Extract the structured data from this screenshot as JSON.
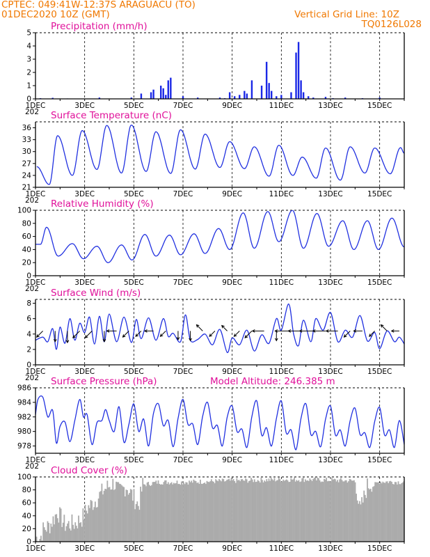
{
  "header": {
    "line1": "CPTEC:   049:41W-12:37S  ARAGUACU (TO)",
    "line2": "01DEC2020 10Z (GMT)",
    "right1": "Vertical Grid Line: 10Z",
    "right2": "TQ0126L028",
    "color": "#f07800"
  },
  "colors": {
    "line": "#2030e0",
    "bar": "#1a28e6",
    "cloud": "#ababab",
    "title": "#e0109a",
    "arrow": "#000000"
  },
  "x_ticks": [
    "1DEC",
    "3DEC",
    "5DEC",
    "7DEC",
    "9DEC",
    "11DEC",
    "13DEC",
    "15DEC"
  ],
  "x_cut_label": "202",
  "chart_data": [
    {
      "type": "bar",
      "title": "Precipitation (mm/h)",
      "ylim": [
        0,
        5
      ],
      "yticks": [
        "0",
        "1",
        "2",
        "3",
        "4",
        "5"
      ],
      "x_unit": "day of December 2020",
      "x": [
        1.2,
        1.7,
        2.3,
        3.6,
        4.9,
        5.3,
        5.7,
        5.8,
        6.1,
        6.2,
        6.3,
        6.4,
        6.5,
        7.0,
        7.6,
        8.5,
        8.7,
        8.9,
        9.1,
        9.3,
        9.5,
        9.6,
        9.8,
        10.2,
        10.4,
        10.5,
        10.6,
        10.8,
        11.0,
        11.4,
        11.6,
        11.7,
        11.8,
        11.9,
        12.1,
        12.3,
        12.8,
        13.1,
        13.6,
        14.3,
        15.0
      ],
      "values": [
        0.05,
        0.08,
        0.03,
        0.1,
        0.1,
        0.4,
        0.5,
        0.7,
        1.0,
        0.8,
        0.3,
        1.4,
        1.6,
        0.2,
        0.1,
        0.1,
        0.05,
        0.5,
        0.2,
        0.3,
        0.6,
        0.4,
        1.4,
        1.0,
        2.8,
        1.2,
        0.6,
        0.2,
        0.3,
        0.5,
        3.5,
        4.3,
        1.4,
        0.5,
        0.2,
        0.1,
        0.15,
        0.05,
        0.1,
        0.05,
        0.1
      ]
    },
    {
      "type": "line",
      "title": "Surface Temperature (nC)",
      "ylim": [
        21,
        37.5
      ],
      "yticks": [
        "21",
        "24",
        "27",
        "30",
        "33",
        "36"
      ],
      "peaks": [
        {
          "day": 1.05,
          "min": 26.2,
          "max": 26.2
        },
        {
          "day": 1.9,
          "min": 21.7,
          "max": 34.0
        },
        {
          "day": 2.9,
          "min": 24.0,
          "max": 35.3
        },
        {
          "day": 3.9,
          "min": 25.5,
          "max": 36.6
        },
        {
          "day": 4.9,
          "min": 24.6,
          "max": 36.7
        },
        {
          "day": 5.9,
          "min": 25.0,
          "max": 35.0
        },
        {
          "day": 6.9,
          "min": 24.5,
          "max": 35.5
        },
        {
          "day": 7.9,
          "min": 25.6,
          "max": 34.4
        },
        {
          "day": 8.9,
          "min": 26.0,
          "max": 32.5
        },
        {
          "day": 9.9,
          "min": 25.7,
          "max": 31.2
        },
        {
          "day": 10.9,
          "min": 23.8,
          "max": 31.6
        },
        {
          "day": 11.85,
          "min": 24.0,
          "max": 28.6
        },
        {
          "day": 12.8,
          "min": 23.3,
          "max": 30.9
        },
        {
          "day": 13.8,
          "min": 22.8,
          "max": 31.2
        },
        {
          "day": 14.8,
          "min": 24.6,
          "max": 30.9
        },
        {
          "day": 15.85,
          "min": 24.4,
          "max": 31.0
        }
      ],
      "end": {
        "day": 16.0,
        "value": 29.6
      }
    },
    {
      "type": "line",
      "title": "Relative Humidity (%)",
      "ylim": [
        0,
        100
      ],
      "yticks": [
        "0",
        "20",
        "40",
        "60",
        "80",
        "100"
      ],
      "peaks": [
        {
          "day": 1.0,
          "min": 48,
          "max": 48
        },
        {
          "day": 1.45,
          "min": 48,
          "max": 74
        },
        {
          "day": 2.5,
          "min": 30,
          "max": 49
        },
        {
          "day": 3.5,
          "min": 26,
          "max": 45
        },
        {
          "day": 4.5,
          "min": 20,
          "max": 47
        },
        {
          "day": 5.45,
          "min": 24,
          "max": 63
        },
        {
          "day": 6.45,
          "min": 30,
          "max": 62
        },
        {
          "day": 7.45,
          "min": 32,
          "max": 64
        },
        {
          "day": 8.45,
          "min": 34,
          "max": 72
        },
        {
          "day": 9.45,
          "min": 40,
          "max": 96
        },
        {
          "day": 10.45,
          "min": 42,
          "max": 98
        },
        {
          "day": 11.45,
          "min": 52,
          "max": 100
        },
        {
          "day": 12.45,
          "min": 42,
          "max": 95
        },
        {
          "day": 13.5,
          "min": 45,
          "max": 84
        },
        {
          "day": 14.5,
          "min": 40,
          "max": 84
        },
        {
          "day": 15.5,
          "min": 40,
          "max": 88
        }
      ],
      "end": {
        "day": 16.0,
        "value": 44
      }
    },
    {
      "type": "line",
      "title": "Surface Wind (m/s)",
      "ylim": [
        0,
        8.5
      ],
      "yticks": [
        "0",
        "2",
        "4",
        "6",
        "8"
      ],
      "x": [
        1.0,
        1.3,
        1.5,
        1.7,
        1.85,
        2.0,
        2.2,
        2.4,
        2.6,
        2.8,
        3.0,
        3.2,
        3.4,
        3.6,
        3.8,
        4.0,
        4.3,
        4.6,
        4.9,
        5.1,
        5.3,
        5.6,
        5.9,
        6.2,
        6.4,
        6.6,
        6.9,
        7.1,
        7.3,
        7.6,
        7.9,
        8.2,
        8.5,
        8.8,
        9.0,
        9.3,
        9.6,
        9.9,
        10.2,
        10.5,
        10.8,
        11.0,
        11.3,
        11.5,
        11.7,
        11.9,
        12.2,
        12.4,
        12.7,
        13.0,
        13.3,
        13.6,
        13.9,
        14.2,
        14.5,
        14.8,
        15.0,
        15.3,
        15.6,
        15.8,
        16.0
      ],
      "values": [
        3.2,
        3.6,
        3.0,
        4.7,
        2.0,
        4.9,
        2.8,
        6.0,
        3.2,
        5.4,
        4.2,
        6.2,
        2.7,
        6.3,
        3.0,
        6.6,
        3.0,
        6.2,
        2.9,
        5.9,
        3.4,
        6.1,
        3.2,
        6.0,
        3.7,
        4.1,
        3.0,
        6.5,
        3.2,
        3.3,
        4.0,
        2.6,
        4.6,
        1.6,
        3.5,
        2.6,
        4.5,
        1.8,
        3.9,
        2.8,
        6.0,
        4.5,
        7.9,
        4.0,
        2.5,
        5.8,
        3.0,
        6.0,
        4.5,
        6.8,
        3.0,
        4.5,
        3.6,
        6.4,
        3.1,
        4.2,
        2.1,
        4.4,
        3.0,
        3.6,
        2.7
      ],
      "arrows": [
        {
          "day": 1.3,
          "dir": "SW",
          "len": 0.9
        },
        {
          "day": 1.8,
          "dir": "S",
          "len": 1.1
        },
        {
          "day": 2.3,
          "dir": "S",
          "len": 1.2
        },
        {
          "day": 2.8,
          "dir": "SW",
          "len": 1.0
        },
        {
          "day": 3.3,
          "dir": "SW",
          "len": 1.0
        },
        {
          "day": 3.8,
          "dir": "S",
          "len": 1.1
        },
        {
          "day": 4.3,
          "dir": "W",
          "len": 1.0
        },
        {
          "day": 4.8,
          "dir": "SW",
          "len": 0.9
        },
        {
          "day": 5.3,
          "dir": "SW",
          "len": 0.8
        },
        {
          "day": 5.8,
          "dir": "W",
          "len": 0.9
        },
        {
          "day": 6.3,
          "dir": "SW",
          "len": 0.8
        },
        {
          "day": 6.8,
          "dir": "S",
          "len": 0.9
        },
        {
          "day": 7.3,
          "dir": "S",
          "len": 1.0
        },
        {
          "day": 7.8,
          "dir": "NW",
          "len": 0.9
        },
        {
          "day": 8.3,
          "dir": "SW",
          "len": 0.8
        },
        {
          "day": 8.8,
          "dir": "NW",
          "len": 0.8
        },
        {
          "day": 9.3,
          "dir": "SW",
          "len": 0.8
        },
        {
          "day": 9.8,
          "dir": "SW",
          "len": 1.0
        },
        {
          "day": 10.3,
          "dir": "W",
          "len": 1.2
        },
        {
          "day": 10.8,
          "dir": "S",
          "len": 1.0
        },
        {
          "day": 11.3,
          "dir": "W",
          "len": 1.4
        },
        {
          "day": 11.8,
          "dir": "W",
          "len": 1.3
        },
        {
          "day": 12.3,
          "dir": "W",
          "len": 1.4
        },
        {
          "day": 12.8,
          "dir": "W",
          "len": 1.3
        },
        {
          "day": 13.3,
          "dir": "W",
          "len": 1.2
        },
        {
          "day": 13.8,
          "dir": "SW",
          "len": 0.9
        },
        {
          "day": 14.3,
          "dir": "W",
          "len": 0.9
        },
        {
          "day": 14.8,
          "dir": "SW",
          "len": 0.8
        },
        {
          "day": 15.3,
          "dir": "NW",
          "len": 0.9
        },
        {
          "day": 15.8,
          "dir": "W",
          "len": 0.8
        }
      ]
    },
    {
      "type": "line",
      "title": "Surface Pressure (hPa)",
      "annotation": "Model Altitude: 246.385 m",
      "ylim": [
        977,
        986
      ],
      "yticks": [
        "978",
        "980",
        "982",
        "984",
        "986"
      ],
      "x": [
        1.0,
        1.1,
        1.3,
        1.5,
        1.7,
        1.85,
        2.0,
        2.2,
        2.4,
        2.6,
        2.8,
        2.95,
        3.1,
        3.3,
        3.5,
        3.7,
        3.85,
        4.0,
        4.2,
        4.4,
        4.6,
        4.8,
        5.0,
        5.2,
        5.4,
        5.6,
        5.8,
        6.0,
        6.2,
        6.4,
        6.6,
        6.8,
        7.0,
        7.2,
        7.4,
        7.6,
        7.8,
        8.0,
        8.2,
        8.4,
        8.6,
        8.8,
        9.0,
        9.2,
        9.4,
        9.6,
        9.8,
        10.0,
        10.2,
        10.4,
        10.6,
        10.8,
        11.0,
        11.2,
        11.4,
        11.6,
        11.8,
        12.0,
        12.2,
        12.4,
        12.6,
        12.8,
        13.0,
        13.2,
        13.4,
        13.6,
        13.8,
        14.0,
        14.2,
        14.4,
        14.6,
        14.8,
        15.0,
        15.2,
        15.4,
        15.6,
        15.8,
        16.0
      ],
      "values": [
        982.3,
        984.4,
        984.7,
        982.0,
        982.9,
        978.4,
        980.7,
        981.3,
        978.6,
        981.5,
        984.4,
        982.0,
        982.3,
        978.2,
        981.2,
        981.5,
        983.0,
        981.5,
        980.0,
        983.4,
        978.5,
        981.0,
        983.8,
        980.0,
        981.7,
        978.0,
        982.5,
        983.8,
        980.8,
        981.5,
        977.9,
        981.8,
        984.4,
        981.0,
        981.0,
        978.2,
        982.1,
        984.0,
        980.5,
        980.8,
        978.0,
        982.0,
        983.5,
        980.0,
        980.3,
        977.8,
        982.0,
        984.2,
        979.5,
        980.5,
        978.0,
        981.8,
        984.2,
        979.8,
        980.2,
        977.5,
        981.8,
        983.8,
        979.6,
        980.0,
        977.9,
        981.7,
        983.5,
        979.5,
        980.2,
        978.0,
        981.5,
        983.2,
        979.6,
        979.8,
        977.8,
        981.4,
        983.3,
        979.5,
        980.2,
        977.8,
        981.5,
        978.2
      ]
    },
    {
      "type": "bar",
      "title": "Cloud Cover (%)",
      "ylim": [
        0,
        100
      ],
      "yticks": [
        "0",
        "20",
        "40",
        "60",
        "80",
        "100"
      ],
      "profile": [
        {
          "day": 1.2,
          "value": 0
        },
        {
          "day": 1.3,
          "value": 12
        },
        {
          "day": 1.6,
          "value": 20
        },
        {
          "day": 1.9,
          "value": 40
        },
        {
          "day": 2.2,
          "value": 20
        },
        {
          "day": 2.6,
          "value": 22
        },
        {
          "day": 2.9,
          "value": 30
        },
        {
          "day": 3.1,
          "value": 45
        },
        {
          "day": 3.5,
          "value": 60
        },
        {
          "day": 3.8,
          "value": 75
        },
        {
          "day": 4.2,
          "value": 85
        },
        {
          "day": 4.4,
          "value": 70
        },
        {
          "day": 4.7,
          "value": 80
        },
        {
          "day": 5.2,
          "value": 50
        },
        {
          "day": 5.4,
          "value": 88
        },
        {
          "day": 6.0,
          "value": 92
        },
        {
          "day": 7.0,
          "value": 92
        },
        {
          "day": 8.0,
          "value": 93
        },
        {
          "day": 9.0,
          "value": 94
        },
        {
          "day": 10.0,
          "value": 95
        },
        {
          "day": 11.0,
          "value": 96
        },
        {
          "day": 12.0,
          "value": 96
        },
        {
          "day": 13.0,
          "value": 95
        },
        {
          "day": 14.0,
          "value": 94
        },
        {
          "day": 14.2,
          "value": 40
        },
        {
          "day": 14.5,
          "value": 80
        },
        {
          "day": 15.0,
          "value": 93
        },
        {
          "day": 16.0,
          "value": 92
        }
      ]
    }
  ]
}
